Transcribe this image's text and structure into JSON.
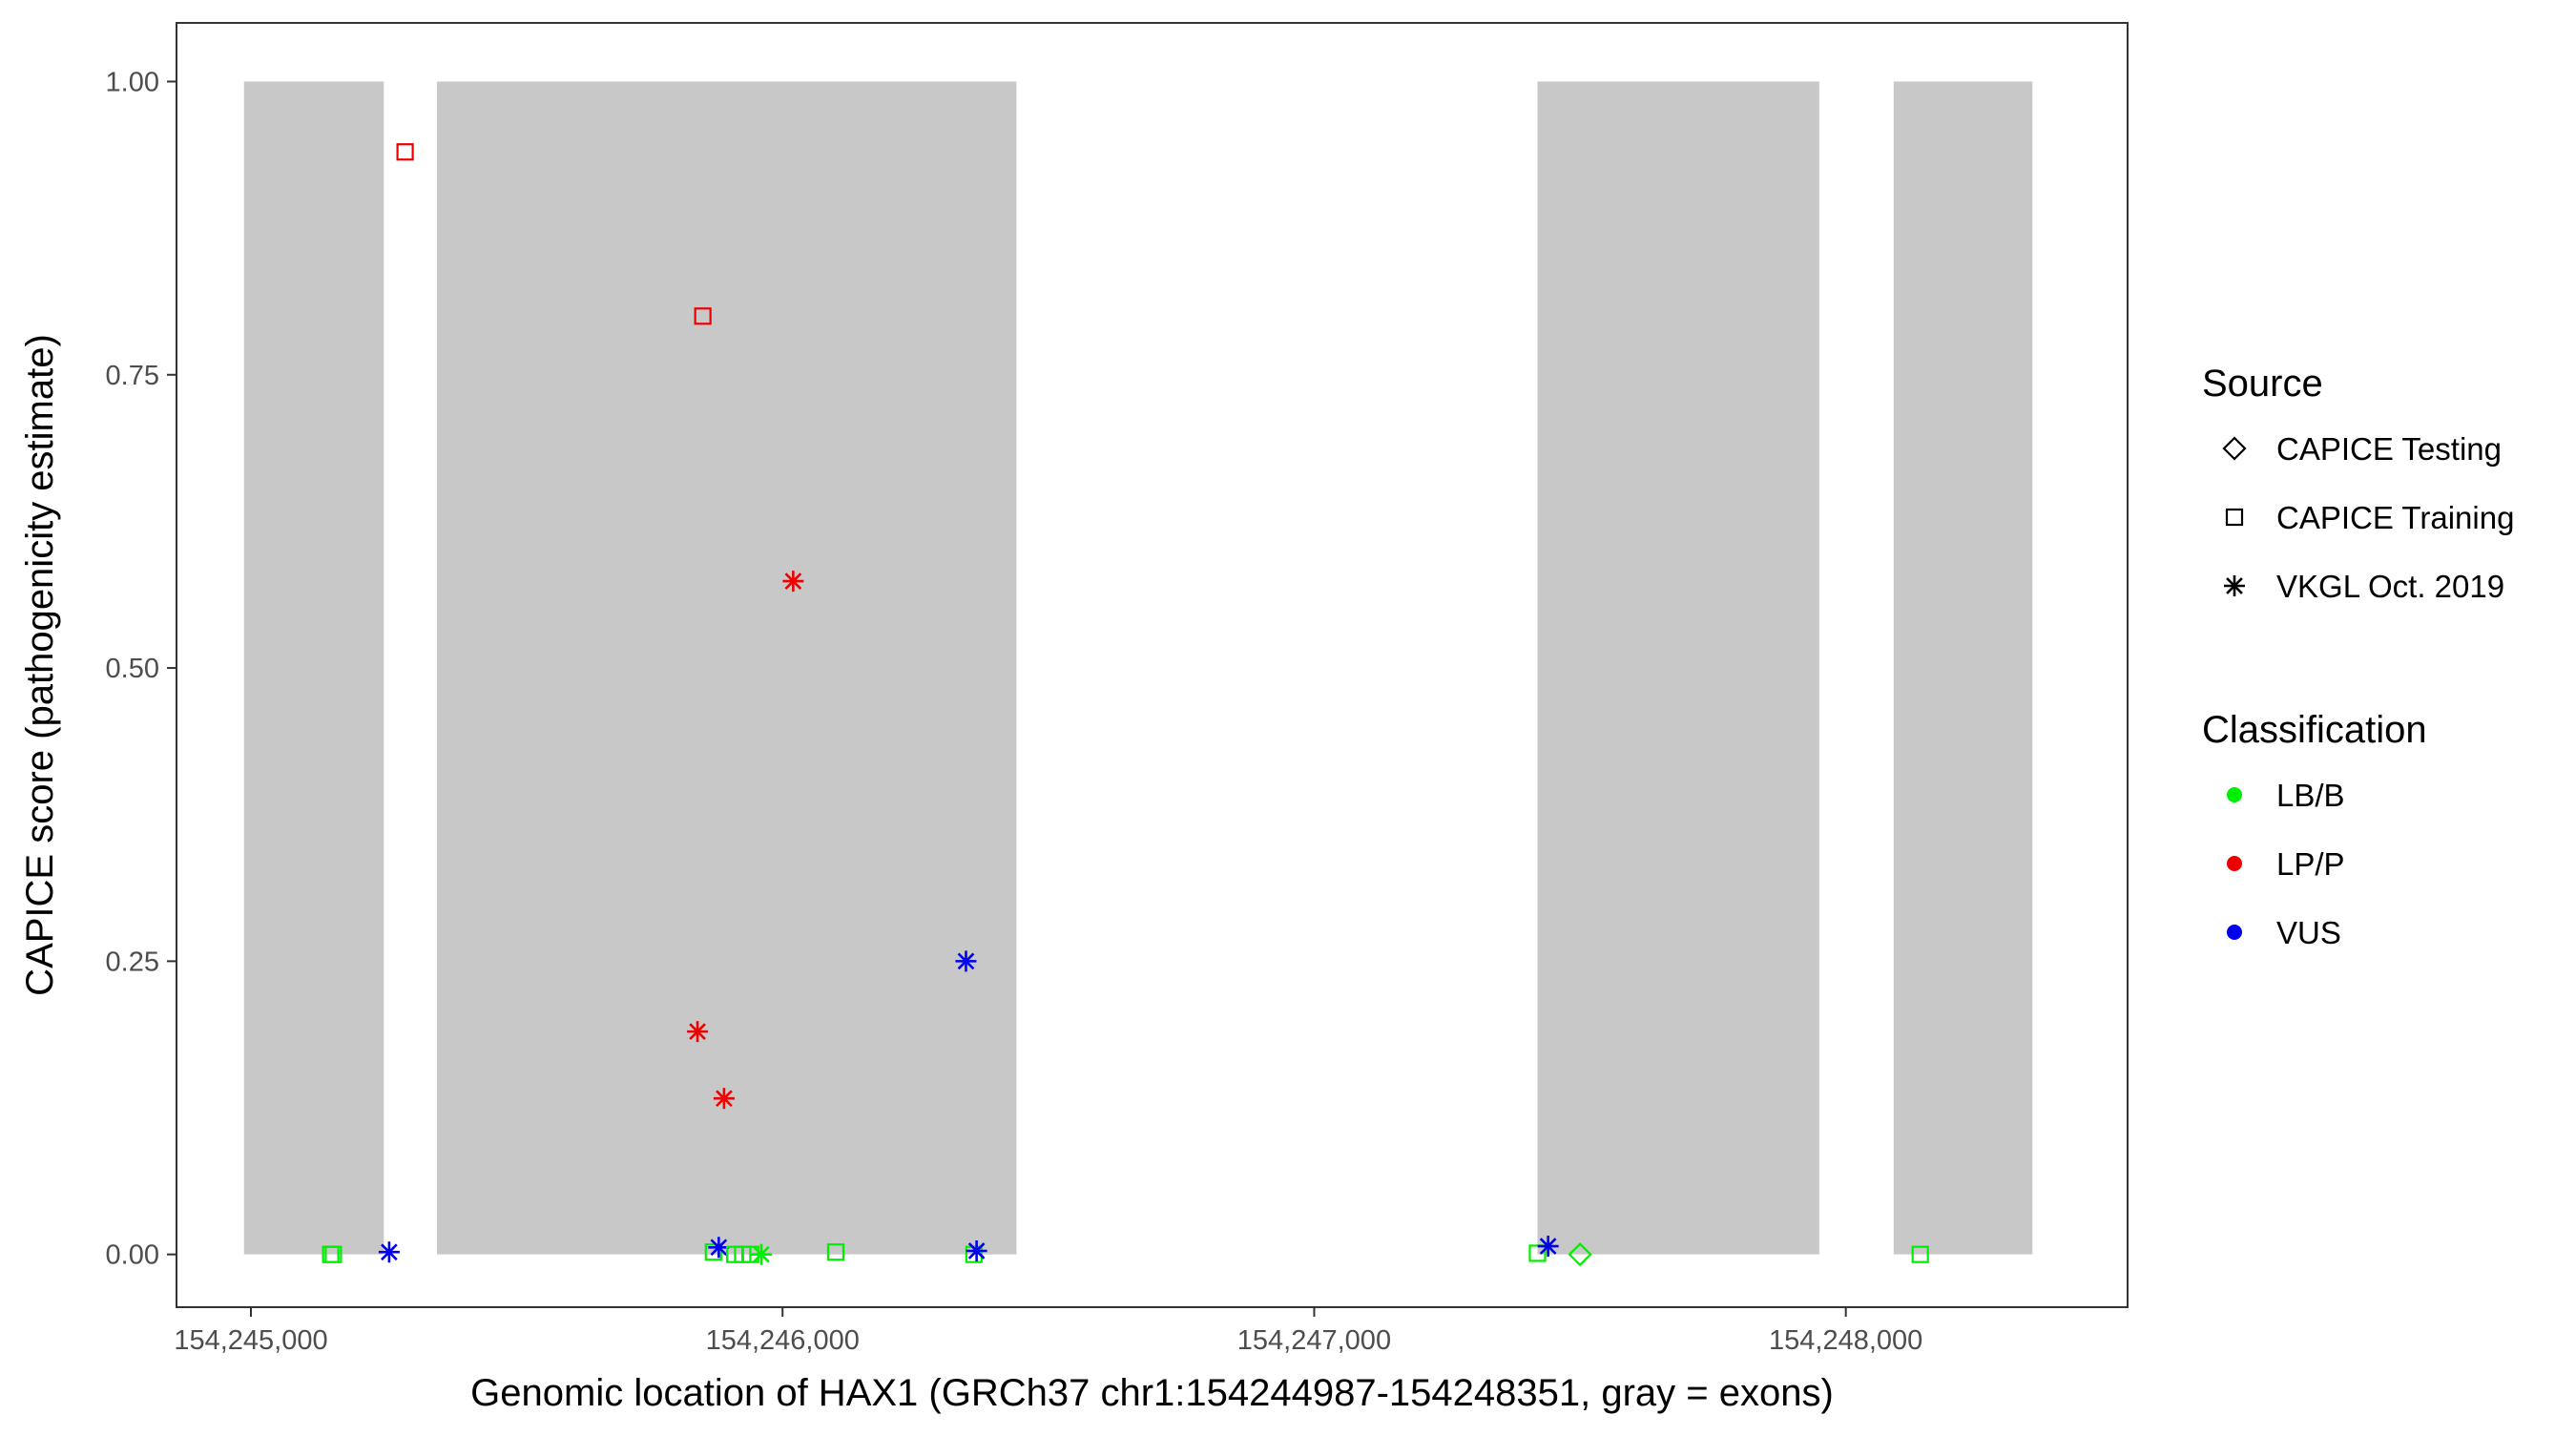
{
  "chart_data": {
    "type": "scatter",
    "title": "",
    "xlabel": "Genomic location of HAX1 (GRCh37 chr1:154244987-154248351, gray = exons)",
    "ylabel": "CAPICE score (pathogenicity estimate)",
    "xlim": [
      154244860,
      154248530
    ],
    "ylim": [
      -0.045,
      1.05
    ],
    "x_ticks": [
      154245000,
      154246000,
      154247000,
      154248000
    ],
    "x_tick_labels": [
      "154,245,000",
      "154,246,000",
      "154,247,000",
      "154,248,000"
    ],
    "y_ticks": [
      0,
      0.25,
      0.5,
      0.75,
      1.0
    ],
    "y_tick_labels": [
      "0.00",
      "0.25",
      "0.50",
      "0.75",
      "1.00"
    ],
    "grid": false,
    "exons": [
      {
        "start": 154244987,
        "end": 154245250
      },
      {
        "start": 154245350,
        "end": 154246440
      },
      {
        "start": 154247420,
        "end": 154247950
      },
      {
        "start": 154248090,
        "end": 154248351
      }
    ],
    "exon_color": "#c8c8c8",
    "legend_position": "right",
    "legend": {
      "source_title": "Source",
      "source_items": [
        {
          "label": "CAPICE Testing",
          "shape": "diamond"
        },
        {
          "label": "CAPICE Training",
          "shape": "square"
        },
        {
          "label": "VKGL Oct. 2019",
          "shape": "asterisk"
        }
      ],
      "classification_title": "Classification",
      "classification_items": [
        {
          "label": "LB/B",
          "color": "#00ee00"
        },
        {
          "label": "LP/P",
          "color": "#ee0000"
        },
        {
          "label": "VUS",
          "color": "#0000ee"
        }
      ]
    },
    "points": [
      {
        "x": 154245150,
        "y": 0.0,
        "source": "CAPICE Training",
        "class": "LB/B"
      },
      {
        "x": 154245155,
        "y": 0.0,
        "source": "CAPICE Training",
        "class": "LB/B"
      },
      {
        "x": 154245260,
        "y": 0.002,
        "source": "VKGL Oct. 2019",
        "class": "VUS"
      },
      {
        "x": 154245290,
        "y": 0.94,
        "source": "CAPICE Training",
        "class": "LP/P"
      },
      {
        "x": 154245850,
        "y": 0.8,
        "source": "CAPICE Training",
        "class": "LP/P"
      },
      {
        "x": 154245840,
        "y": 0.19,
        "source": "VKGL Oct. 2019",
        "class": "LP/P"
      },
      {
        "x": 154245890,
        "y": 0.133,
        "source": "VKGL Oct. 2019",
        "class": "LP/P"
      },
      {
        "x": 154246020,
        "y": 0.574,
        "source": "VKGL Oct. 2019",
        "class": "LP/P"
      },
      {
        "x": 154245870,
        "y": 0.002,
        "source": "CAPICE Training",
        "class": "LB/B"
      },
      {
        "x": 154245880,
        "y": 0.006,
        "source": "VKGL Oct. 2019",
        "class": "VUS"
      },
      {
        "x": 154245910,
        "y": 0.0,
        "source": "CAPICE Training",
        "class": "LB/B"
      },
      {
        "x": 154245925,
        "y": 0.0,
        "source": "CAPICE Training",
        "class": "LB/B"
      },
      {
        "x": 154245940,
        "y": 0.0,
        "source": "CAPICE Training",
        "class": "LB/B"
      },
      {
        "x": 154245960,
        "y": 0.0,
        "source": "VKGL Oct. 2019",
        "class": "LB/B"
      },
      {
        "x": 154246100,
        "y": 0.002,
        "source": "CAPICE Training",
        "class": "LB/B"
      },
      {
        "x": 154246345,
        "y": 0.25,
        "source": "VKGL Oct. 2019",
        "class": "VUS"
      },
      {
        "x": 154246360,
        "y": 0.0,
        "source": "CAPICE Training",
        "class": "LB/B"
      },
      {
        "x": 154246365,
        "y": 0.003,
        "source": "VKGL Oct. 2019",
        "class": "VUS"
      },
      {
        "x": 154247420,
        "y": 0.001,
        "source": "CAPICE Training",
        "class": "LB/B"
      },
      {
        "x": 154247440,
        "y": 0.007,
        "source": "VKGL Oct. 2019",
        "class": "VUS"
      },
      {
        "x": 154247500,
        "y": 0.0,
        "source": "CAPICE Testing",
        "class": "LB/B"
      },
      {
        "x": 154248140,
        "y": 0.0,
        "source": "CAPICE Training",
        "class": "LB/B"
      }
    ]
  }
}
